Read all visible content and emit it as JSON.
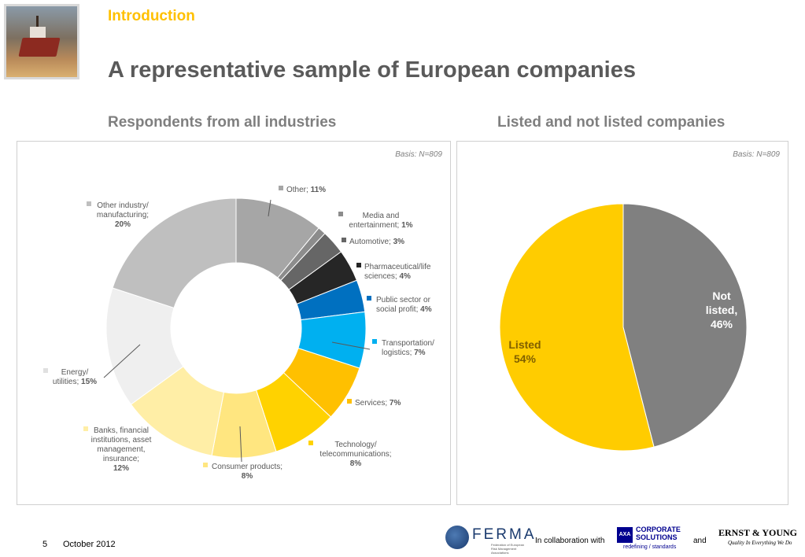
{
  "header": {
    "section": "Introduction",
    "title": "A representative sample of European companies"
  },
  "left_panel": {
    "subtitle": "Respondents from all industries",
    "basis": "Basis: N=809"
  },
  "right_panel": {
    "subtitle": "Listed and not listed companies",
    "basis": "Basis: N=809"
  },
  "colors": {
    "accent": "#ffc000",
    "title_gray": "#5a5a5a"
  },
  "chart_data": [
    {
      "type": "pie",
      "variant": "donut",
      "slices": [
        {
          "label": "Other",
          "value": 11,
          "label_lines": [
            "Other; ",
            "11%"
          ],
          "color": "#a6a6a6"
        },
        {
          "label": "Media and entertainment",
          "value": 1,
          "label_lines": [
            "Media and",
            "entertainment; ",
            "1%"
          ],
          "color": "#8c8c8c"
        },
        {
          "label": "Automotive",
          "value": 3,
          "label_lines": [
            "Automotive; ",
            "3%"
          ],
          "color": "#666666"
        },
        {
          "label": "Pharmaceutical/life sciences",
          "value": 4,
          "label_lines": [
            "Pharmaceutical/life",
            "sciences; ",
            "4%"
          ],
          "color": "#262626"
        },
        {
          "label": "Public sector or social profit",
          "value": 4,
          "label_lines": [
            "Public sector or",
            "social profit; ",
            "4%"
          ],
          "color": "#0070c0"
        },
        {
          "label": "Transportation/ logistics",
          "value": 7,
          "label_lines": [
            "Transportation/",
            "logistics; ",
            "7%"
          ],
          "color": "#00b0f0"
        },
        {
          "label": "Services",
          "value": 7,
          "label_lines": [
            "Services; ",
            "7%"
          ],
          "color": "#ffc000"
        },
        {
          "label": "Technology/ telecommunications",
          "value": 8,
          "label_lines": [
            "Technology/",
            "telecommunications;",
            "8%"
          ],
          "color": "#ffd200"
        },
        {
          "label": "Consumer products",
          "value": 8,
          "label_lines": [
            "Consumer products;",
            "8%"
          ],
          "color": "#ffe680"
        },
        {
          "label": "Banks, financial institutions, asset management, insurance",
          "value": 12,
          "label_lines": [
            "Banks, financial",
            "institutions, asset",
            "management,",
            "insurance;",
            "12%"
          ],
          "color": "#ffeea6"
        },
        {
          "label": "Energy/ utilities",
          "value": 15,
          "label_lines": [
            "Energy/",
            "utilities; ",
            "15%"
          ],
          "color": "#efefef"
        },
        {
          "label": "Other industry/ manufacturing",
          "value": 20,
          "label_lines": [
            "Other industry/",
            "manufacturing;",
            "20%"
          ],
          "color": "#bfbfbf"
        }
      ]
    },
    {
      "type": "pie",
      "slices": [
        {
          "label": "Not listed",
          "value": 46,
          "label_lines": [
            "Not",
            "listed,",
            "46%"
          ],
          "color": "#808080"
        },
        {
          "label": "Listed",
          "value": 54,
          "label_lines": [
            "Listed",
            "54%"
          ],
          "color": "#ffcc00"
        }
      ]
    }
  ],
  "footer": {
    "page": "5",
    "date": "October 2012",
    "collab": "In collaboration with",
    "and": "and",
    "ferma_wordmark": "FERMA",
    "ferma_tagline": "Federation of European Risk Management Associations",
    "axa_logo": "AXA",
    "axa_line1": "CORPORATE",
    "axa_line2": "SOLUTIONS",
    "axa_slogan": "redefining / standards",
    "ey_name": "ERNST & YOUNG",
    "ey_slogan": "Quality In Everything We Do"
  }
}
